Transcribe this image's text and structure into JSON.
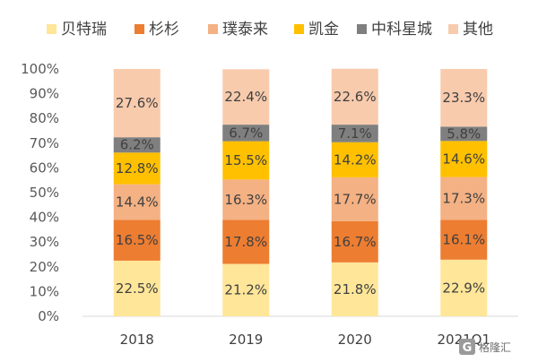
{
  "chart_data": {
    "type": "bar",
    "stacked": true,
    "percent_stacked": true,
    "categories": [
      "2018",
      "2019",
      "2020",
      "2021Q1"
    ],
    "series": [
      {
        "name": "贝特瑞",
        "color": "#FFE699",
        "values": [
          22.5,
          21.2,
          21.8,
          22.9
        ]
      },
      {
        "name": "杉杉",
        "color": "#ED7D31",
        "values": [
          16.5,
          17.8,
          16.7,
          16.1
        ]
      },
      {
        "name": "璞泰来",
        "color": "#F4B183",
        "values": [
          14.4,
          16.3,
          17.7,
          17.3
        ]
      },
      {
        "name": "凯金",
        "color": "#FFC000",
        "values": [
          12.8,
          15.5,
          14.2,
          14.6
        ]
      },
      {
        "name": "中科星城",
        "color": "#7F7F7F",
        "values": [
          6.2,
          6.7,
          7.1,
          5.8
        ]
      },
      {
        "name": "其他",
        "color": "#F8CBAD",
        "values": [
          27.6,
          22.4,
          22.6,
          23.3
        ]
      }
    ],
    "data_labels": [
      [
        "22.5%",
        "21.2%",
        "21.8%",
        "22.9%"
      ],
      [
        "16.5%",
        "17.8%",
        "16.7%",
        "16.1%"
      ],
      [
        "14.4%",
        "16.3%",
        "17.7%",
        "17.3%"
      ],
      [
        "12.8%",
        "15.5%",
        "14.2%",
        "14.6%"
      ],
      [
        "6.2%",
        "6.7%",
        "7.1%",
        "5.8%"
      ],
      [
        "27.6%",
        "22.4%",
        "22.6%",
        "23.3%"
      ]
    ],
    "y_ticks": [
      "0%",
      "10%",
      "20%",
      "30%",
      "40%",
      "50%",
      "60%",
      "70%",
      "80%",
      "90%",
      "100%"
    ],
    "ylim": [
      0,
      100
    ],
    "grid": false,
    "legend_position": "top",
    "title": "",
    "xlabel": "",
    "ylabel": ""
  },
  "watermark": {
    "text": "格隆汇",
    "icon": "gelonghui-logo-icon"
  }
}
